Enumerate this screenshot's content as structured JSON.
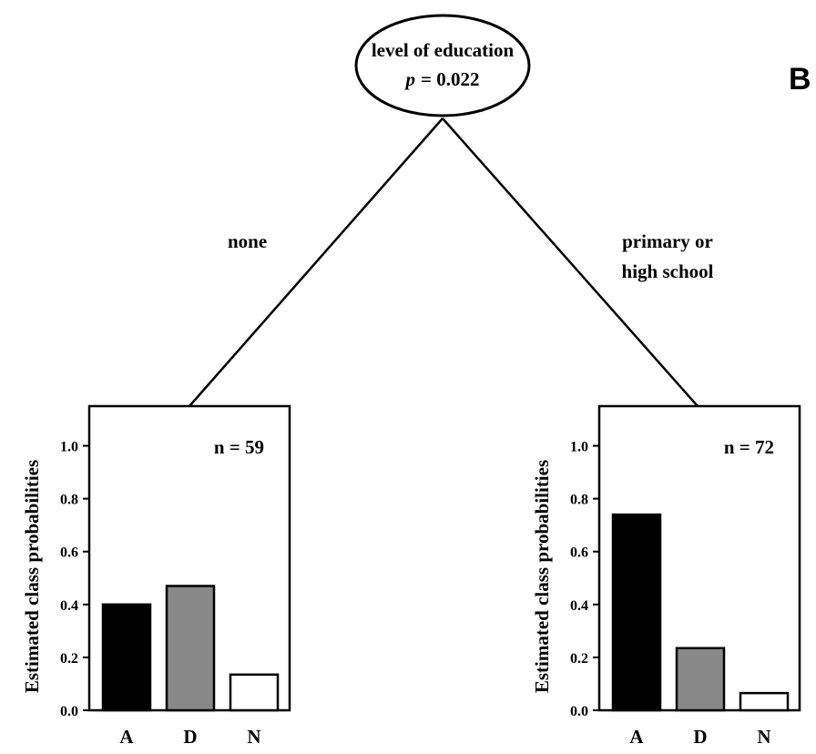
{
  "panel_label": "B",
  "root": {
    "title": "level of education",
    "p_label": "p",
    "p_value": "= 0.022"
  },
  "edges": {
    "left": "none",
    "right_line1": "primary or",
    "right_line2": "high school"
  },
  "chart_data": [
    {
      "type": "bar",
      "annotation": "n = 59",
      "ylabel": "Estimated class probabilities",
      "categories": [
        "A",
        "D",
        "N"
      ],
      "values": [
        0.4,
        0.47,
        0.135
      ],
      "colors": [
        "#000000",
        "#888888",
        "#ffffff"
      ],
      "ylim": [
        0,
        1.15
      ],
      "yticks": [
        "0.0",
        "0.2",
        "0.4",
        "0.6",
        "0.8",
        "1.0"
      ]
    },
    {
      "type": "bar",
      "annotation": "n = 72",
      "ylabel": "Estimated class probabilities",
      "categories": [
        "A",
        "D",
        "N"
      ],
      "values": [
        0.74,
        0.235,
        0.065
      ],
      "colors": [
        "#000000",
        "#888888",
        "#ffffff"
      ],
      "ylim": [
        0,
        1.15
      ],
      "yticks": [
        "0.0",
        "0.2",
        "0.4",
        "0.6",
        "0.8",
        "1.0"
      ]
    }
  ]
}
